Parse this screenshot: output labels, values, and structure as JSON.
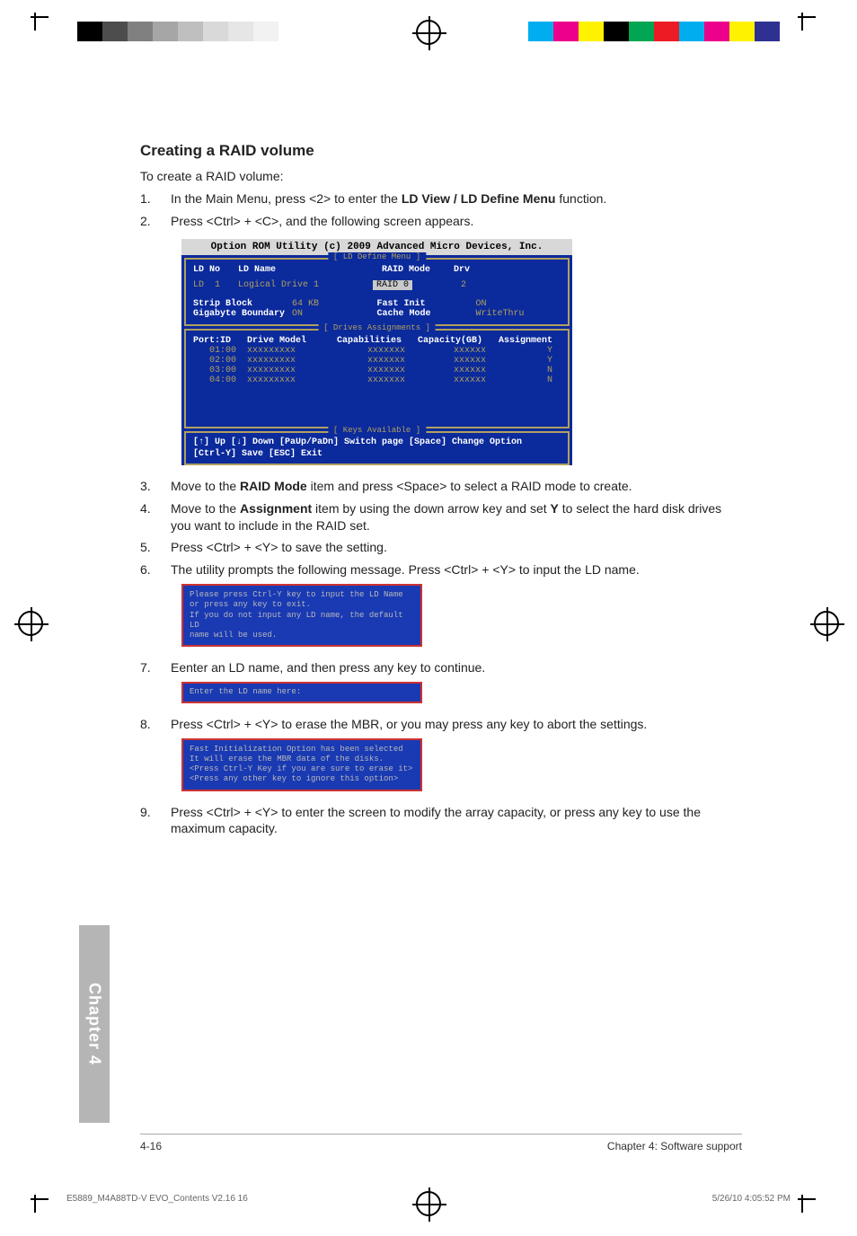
{
  "print": {
    "left_swatches": [
      "#000000",
      "#4d4d4d",
      "#808080",
      "#a6a6a6",
      "#bfbfbf",
      "#d9d9d9",
      "#e6e6e6",
      "#f2f2f2",
      "#ffffff",
      "#ffffff"
    ],
    "right_swatches": [
      "#00aeef",
      "#ec008c",
      "#fff200",
      "#000000",
      "#00a651",
      "#ed1c24",
      "#00aeef",
      "#ec008c",
      "#fff200",
      "#2e3192"
    ]
  },
  "heading": "Creating a RAID volume",
  "lead": "To create a RAID volume:",
  "steps": {
    "s1_pre": "In the Main Menu, press <2> to enter the ",
    "s1_bold": "LD View / LD Define Menu",
    "s1_post": " function.",
    "s2": "Press <Ctrl> + <C>, and the following screen appears.",
    "s3_pre": "Move to the ",
    "s3_bold": "RAID Mode",
    "s3_post": " item and press <Space> to select a RAID mode to create.",
    "s4_pre": "Move to the ",
    "s4_bold1": "Assignment",
    "s4_mid": " item by using the down arrow key and set ",
    "s4_bold2": "Y",
    "s4_post": " to select the hard disk drives you want to include in the RAID set.",
    "s5": "Press <Ctrl> + <Y> to save the setting.",
    "s6": "The utility prompts the following message. Press <Ctrl> + <Y> to input the LD name.",
    "s7": "Eenter an LD name, and then press any key to continue.",
    "s8": "Press <Ctrl> + <Y> to erase the MBR, or you may press any key to abort the settings.",
    "s9": "Press <Ctrl> + <Y> to enter the screen to modify the array capacity, or press any key to use the maximum capacity."
  },
  "bios": {
    "title": "Option ROM Utility (c) 2009 Advanced Micro Devices, Inc.",
    "section1_label": "[ LD Define Menu ]",
    "hdr": {
      "ldno": "LD No",
      "ldname": "LD Name",
      "raidmode": "RAID Mode",
      "drv": "Drv"
    },
    "row": {
      "ldno": "LD  1",
      "ldname": "Logical Drive 1",
      "raidmode": "RAID 0",
      "drv": "2"
    },
    "meta": {
      "strip_lbl": "Strip Block",
      "strip_val": "64 KB",
      "fast_lbl": "Fast Init",
      "fast_val": "ON",
      "gb_lbl": "Gigabyte Boundary",
      "gb_val": "ON",
      "cache_lbl": "Cache Mode",
      "cache_val": "WriteThru"
    },
    "section2_label": "[ Drives Assignments ]",
    "drv_hdr": {
      "port": "Port:ID",
      "model": "Drive Model",
      "cap": "Capabilities",
      "gb": "Capacity(GB)",
      "asg": "Assignment"
    },
    "drives": [
      {
        "port": "01:00",
        "model": "xxxxxxxxx",
        "cap": "xxxxxxx",
        "gb": "xxxxxx",
        "asg": "Y"
      },
      {
        "port": "02:00",
        "model": "xxxxxxxxx",
        "cap": "xxxxxxx",
        "gb": "xxxxxx",
        "asg": "Y"
      },
      {
        "port": "03:00",
        "model": "xxxxxxxxx",
        "cap": "xxxxxxx",
        "gb": "xxxxxx",
        "asg": "N"
      },
      {
        "port": "04:00",
        "model": "xxxxxxxxx",
        "cap": "xxxxxxx",
        "gb": "xxxxxx",
        "asg": "N"
      }
    ],
    "section3_label": "[ Keys Available ]",
    "keys_line1": "[↑] Up  [↓] Down  [PaUp/PaDn] Switch page  [Space] Change Option",
    "keys_line2": "[Ctrl-Y] Save  [ESC] Exit"
  },
  "box1": "Please press Ctrl-Y key to input the LD Name\nor press any key to exit.\nIf you do not input any LD name, the default LD\nname will be used.",
  "box2": "Enter the LD name here:",
  "box3": "Fast Initialization Option has been selected\nIt will erase the MBR data of the disks.\n<Press Ctrl-Y Key if you are sure to erase it>\n<Press any other key to ignore this option>",
  "chapter_tab": "Chapter 4",
  "footer": {
    "left": "4-16",
    "right": "Chapter 4: Software support"
  },
  "printline": {
    "left": "E5889_M4A88TD-V EVO_Contents V2.16   16",
    "right": "5/26/10   4:05:52 PM"
  }
}
